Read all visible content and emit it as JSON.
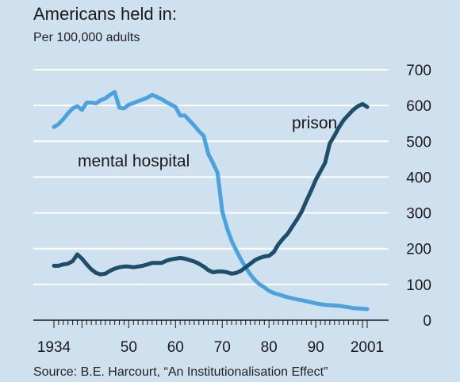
{
  "chart_data": {
    "type": "line",
    "title": "Americans held in:",
    "subtitle": "Per 100,000 adults",
    "source": "Source: B.E. Harcourt, “An Institutionalisation Effect”",
    "x_tick_labels": [
      {
        "value": 1934,
        "label": "1934"
      },
      {
        "value": 1950,
        "label": "50"
      },
      {
        "value": 1960,
        "label": "60"
      },
      {
        "value": 1970,
        "label": "70"
      },
      {
        "value": 1980,
        "label": "80"
      },
      {
        "value": 1990,
        "label": "90"
      },
      {
        "value": 2001,
        "label": "2001"
      }
    ],
    "y_ticks": [
      0,
      100,
      200,
      300,
      400,
      500,
      600,
      700
    ],
    "xlim": [
      1934,
      2001
    ],
    "ylim": [
      0,
      700
    ],
    "grid": true,
    "y_axis_side": "right",
    "colors": {
      "mental_hospital": "#4aa3df",
      "prison": "#1d4e6c",
      "background": "#cfe0ef"
    },
    "series": [
      {
        "name": "mental hospital",
        "color": "#4aa3df",
        "points": [
          [
            1934,
            540
          ],
          [
            1935,
            548
          ],
          [
            1936,
            562
          ],
          [
            1937,
            578
          ],
          [
            1938,
            592
          ],
          [
            1939,
            598
          ],
          [
            1940,
            588
          ],
          [
            1941,
            608
          ],
          [
            1942,
            608
          ],
          [
            1943,
            606
          ],
          [
            1944,
            615
          ],
          [
            1945,
            620
          ],
          [
            1946,
            630
          ],
          [
            1947,
            638
          ],
          [
            1948,
            594
          ],
          [
            1949,
            592
          ],
          [
            1950,
            602
          ],
          [
            1951,
            607
          ],
          [
            1952,
            612
          ],
          [
            1953,
            617
          ],
          [
            1954,
            622
          ],
          [
            1955,
            630
          ],
          [
            1956,
            624
          ],
          [
            1957,
            618
          ],
          [
            1958,
            610
          ],
          [
            1959,
            603
          ],
          [
            1960,
            596
          ],
          [
            1961,
            572
          ],
          [
            1962,
            572
          ],
          [
            1963,
            558
          ],
          [
            1964,
            544
          ],
          [
            1965,
            528
          ],
          [
            1966,
            516
          ],
          [
            1967,
            465
          ],
          [
            1968,
            440
          ],
          [
            1969,
            412
          ],
          [
            1970,
            305
          ],
          [
            1971,
            258
          ],
          [
            1972,
            222
          ],
          [
            1973,
            195
          ],
          [
            1974,
            170
          ],
          [
            1975,
            148
          ],
          [
            1976,
            128
          ],
          [
            1977,
            112
          ],
          [
            1978,
            100
          ],
          [
            1979,
            92
          ],
          [
            1980,
            82
          ],
          [
            1981,
            76
          ],
          [
            1982,
            72
          ],
          [
            1983,
            68
          ],
          [
            1984,
            64
          ],
          [
            1985,
            61
          ],
          [
            1986,
            58
          ],
          [
            1987,
            56
          ],
          [
            1988,
            53
          ],
          [
            1989,
            50
          ],
          [
            1990,
            47
          ],
          [
            1991,
            45
          ],
          [
            1992,
            43
          ],
          [
            1993,
            42
          ],
          [
            1994,
            41
          ],
          [
            1995,
            40
          ],
          [
            1996,
            38
          ],
          [
            1997,
            36
          ],
          [
            1998,
            34
          ],
          [
            1999,
            33
          ],
          [
            2000,
            32
          ],
          [
            2001,
            31
          ]
        ]
      },
      {
        "name": "prison",
        "color": "#1d4e6c",
        "points": [
          [
            1934,
            152
          ],
          [
            1935,
            152
          ],
          [
            1936,
            156
          ],
          [
            1937,
            158
          ],
          [
            1938,
            165
          ],
          [
            1939,
            184
          ],
          [
            1940,
            172
          ],
          [
            1941,
            156
          ],
          [
            1942,
            142
          ],
          [
            1943,
            132
          ],
          [
            1944,
            128
          ],
          [
            1945,
            130
          ],
          [
            1946,
            138
          ],
          [
            1947,
            144
          ],
          [
            1948,
            148
          ],
          [
            1949,
            150
          ],
          [
            1950,
            150
          ],
          [
            1951,
            148
          ],
          [
            1952,
            150
          ],
          [
            1953,
            152
          ],
          [
            1954,
            156
          ],
          [
            1955,
            160
          ],
          [
            1956,
            160
          ],
          [
            1957,
            160
          ],
          [
            1958,
            166
          ],
          [
            1959,
            170
          ],
          [
            1960,
            172
          ],
          [
            1961,
            174
          ],
          [
            1962,
            172
          ],
          [
            1963,
            168
          ],
          [
            1964,
            164
          ],
          [
            1965,
            158
          ],
          [
            1966,
            150
          ],
          [
            1967,
            140
          ],
          [
            1968,
            134
          ],
          [
            1969,
            136
          ],
          [
            1970,
            136
          ],
          [
            1971,
            134
          ],
          [
            1972,
            130
          ],
          [
            1973,
            132
          ],
          [
            1974,
            138
          ],
          [
            1975,
            148
          ],
          [
            1976,
            158
          ],
          [
            1977,
            168
          ],
          [
            1978,
            174
          ],
          [
            1979,
            178
          ],
          [
            1980,
            180
          ],
          [
            1981,
            190
          ],
          [
            1982,
            212
          ],
          [
            1983,
            228
          ],
          [
            1984,
            242
          ],
          [
            1985,
            262
          ],
          [
            1986,
            282
          ],
          [
            1987,
            304
          ],
          [
            1988,
            334
          ],
          [
            1989,
            362
          ],
          [
            1990,
            392
          ],
          [
            1991,
            416
          ],
          [
            1992,
            440
          ],
          [
            1993,
            494
          ],
          [
            1994,
            516
          ],
          [
            1995,
            540
          ],
          [
            1996,
            560
          ],
          [
            1997,
            574
          ],
          [
            1998,
            588
          ],
          [
            1999,
            598
          ],
          [
            2000,
            604
          ],
          [
            2001,
            596
          ]
        ]
      }
    ],
    "annotations": [
      {
        "text": "mental hospital",
        "series": "mental hospital"
      },
      {
        "text": "prison",
        "series": "prison"
      }
    ]
  }
}
